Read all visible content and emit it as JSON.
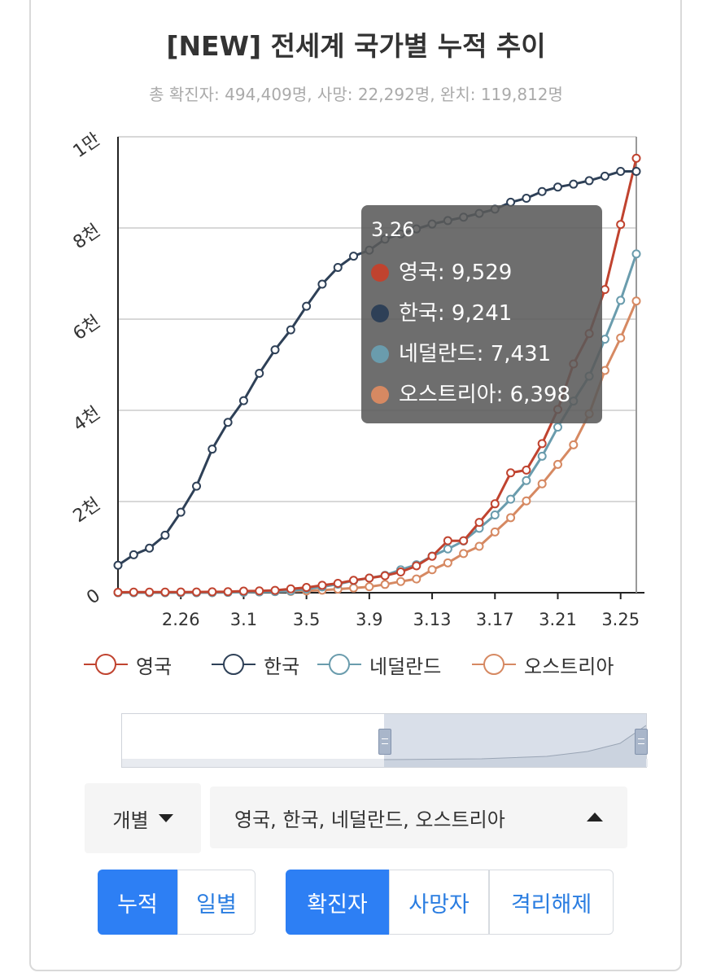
{
  "title": "[NEW] 전세계 국가별 누적 추이",
  "subtitle": "총 확진자: 494,409명, 사망: 22,292명, 완치: 119,812명",
  "chart_data": {
    "type": "line",
    "x_tick_labels": [
      "2.26",
      "3.1",
      "3.5",
      "3.9",
      "3.13",
      "3.17",
      "3.21",
      "3.25"
    ],
    "y_tick_labels": [
      "0",
      "2천",
      "4천",
      "6천",
      "8천",
      "1만"
    ],
    "ylim": [
      0,
      10000
    ],
    "grid": true,
    "legend_position": "bottom",
    "categories": [
      "2.22",
      "2.23",
      "2.24",
      "2.25",
      "2.26",
      "2.27",
      "2.28",
      "2.29",
      "3.1",
      "3.2",
      "3.3",
      "3.4",
      "3.5",
      "3.6",
      "3.7",
      "3.8",
      "3.9",
      "3.10",
      "3.11",
      "3.12",
      "3.13",
      "3.14",
      "3.15",
      "3.16",
      "3.17",
      "3.18",
      "3.19",
      "3.20",
      "3.21",
      "3.22",
      "3.23",
      "3.24",
      "3.25",
      "3.26"
    ],
    "series": [
      {
        "name": "영국",
        "color": "#c0432f",
        "values": [
          9,
          13,
          13,
          13,
          15,
          16,
          20,
          23,
          35,
          40,
          51,
          85,
          115,
          163,
          206,
          273,
          321,
          373,
          456,
          590,
          800,
          1140,
          1140,
          1543,
          1950,
          2630,
          2690,
          3270,
          4020,
          5018,
          5683,
          6650,
          8077,
          9529
        ]
      },
      {
        "name": "한국",
        "color": "#2e4057",
        "values": [
          602,
          833,
          977,
          1261,
          1766,
          2337,
          3150,
          3736,
          4212,
          4812,
          5328,
          5766,
          6284,
          6767,
          7134,
          7382,
          7513,
          7755,
          7869,
          7979,
          8086,
          8162,
          8236,
          8320,
          8413,
          8565,
          8652,
          8799,
          8897,
          8961,
          9037,
          9137,
          9241,
          9241
        ]
      },
      {
        "name": "네덜란드",
        "color": "#6a9cad",
        "values": [
          0,
          0,
          0,
          0,
          0,
          1,
          2,
          7,
          10,
          18,
          24,
          38,
          82,
          128,
          188,
          265,
          321,
          382,
          503,
          614,
          804,
          959,
          1135,
          1413,
          1705,
          2051,
          2460,
          2994,
          3631,
          4204,
          4749,
          5560,
          6412,
          7431
        ]
      },
      {
        "name": "오스트리아",
        "color": "#d68962",
        "values": [
          0,
          0,
          0,
          2,
          3,
          3,
          3,
          9,
          14,
          18,
          24,
          29,
          41,
          55,
          79,
          104,
          131,
          182,
          246,
          302,
          504,
          655,
          860,
          1018,
          1332,
          1646,
          2013,
          2388,
          2814,
          3244,
          3924,
          4876,
          5588,
          6398
        ]
      }
    ]
  },
  "tooltip": {
    "date": "3.26",
    "rows": [
      {
        "label": "영국: 9,529",
        "color": "#c0432f"
      },
      {
        "label": "한국: 9,241",
        "color": "#2e4057"
      },
      {
        "label": "네덜란드: 7,431",
        "color": "#6a9cad"
      },
      {
        "label": "오스트리아: 6,398",
        "color": "#d68962"
      }
    ]
  },
  "legend": {
    "items": [
      {
        "label": "영국",
        "color": "#c0432f"
      },
      {
        "label": "한국",
        "color": "#2e4057"
      },
      {
        "label": "네덜란드",
        "color": "#6a9cad"
      },
      {
        "label": "오스트리아",
        "color": "#d68962"
      }
    ]
  },
  "controls": {
    "mode_select": "개별",
    "country_select": "영국, 한국, 네덜란드, 오스트리아",
    "range_buttons": [
      "누적",
      "일별"
    ],
    "range_active": 0,
    "metric_buttons": [
      "확진자",
      "사망자",
      "격리해제"
    ],
    "metric_active": 0
  },
  "zoom": {
    "selected_start": 0.5,
    "selected_end": 1.0
  }
}
